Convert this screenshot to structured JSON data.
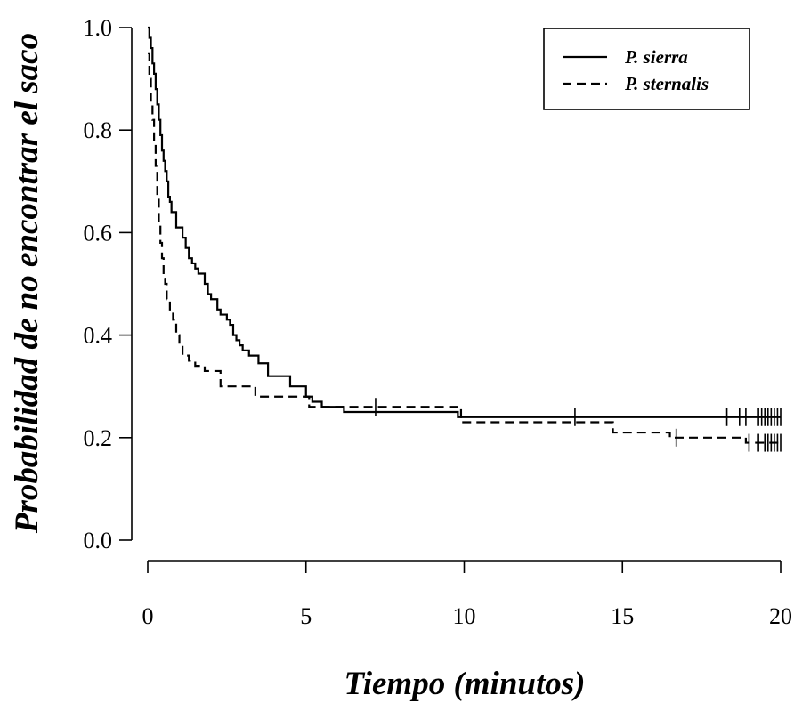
{
  "chart_data": {
    "type": "line",
    "subtype": "kaplan-meier step survival curves",
    "title": "",
    "xlabel": "Tiempo (minutos)",
    "ylabel": "Probabilidad de no encontrar el saco",
    "xlim": [
      0,
      20
    ],
    "ylim": [
      0,
      1
    ],
    "xticks": [
      "0",
      "5",
      "10",
      "15",
      "20"
    ],
    "yticks": [
      "0.0",
      "0.2",
      "0.4",
      "0.6",
      "0.8",
      "1.0"
    ],
    "grid": false,
    "legend_position": "top-right",
    "series": [
      {
        "name": "P. sierra",
        "line_style": "solid",
        "color": "#000000",
        "x": [
          0,
          0.05,
          0.1,
          0.15,
          0.2,
          0.25,
          0.3,
          0.35,
          0.4,
          0.45,
          0.5,
          0.55,
          0.6,
          0.65,
          0.7,
          0.75,
          0.8,
          0.9,
          1.1,
          1.2,
          1.3,
          1.4,
          1.5,
          1.6,
          1.8,
          1.9,
          2.0,
          2.2,
          2.3,
          2.5,
          2.6,
          2.7,
          2.8,
          2.9,
          3.0,
          3.2,
          3.5,
          3.8,
          4.5,
          5.0,
          5.2,
          5.5,
          6.2,
          9.8,
          20.0
        ],
        "y": [
          1.0,
          0.98,
          0.96,
          0.93,
          0.91,
          0.88,
          0.85,
          0.82,
          0.79,
          0.76,
          0.74,
          0.72,
          0.7,
          0.67,
          0.66,
          0.64,
          0.64,
          0.61,
          0.59,
          0.57,
          0.55,
          0.54,
          0.53,
          0.52,
          0.5,
          0.48,
          0.47,
          0.45,
          0.44,
          0.43,
          0.42,
          0.4,
          0.39,
          0.38,
          0.37,
          0.36,
          0.345,
          0.32,
          0.3,
          0.28,
          0.27,
          0.26,
          0.25,
          0.24,
          0.24
        ],
        "censor_times": [
          13.5,
          18.3,
          18.7,
          18.9,
          19.3,
          19.4,
          19.5,
          19.6,
          19.7,
          19.8,
          19.9,
          20.0
        ]
      },
      {
        "name": "P. sternalis",
        "line_style": "dashed",
        "color": "#000000",
        "x": [
          0,
          0.05,
          0.1,
          0.15,
          0.2,
          0.25,
          0.3,
          0.35,
          0.4,
          0.45,
          0.5,
          0.55,
          0.6,
          0.7,
          0.8,
          0.9,
          1.0,
          1.1,
          1.3,
          1.5,
          1.8,
          2.3,
          3.4,
          5.1,
          9.9,
          14.7,
          16.5,
          18.9,
          20.0
        ],
        "y": [
          0.95,
          0.9,
          0.85,
          0.82,
          0.78,
          0.73,
          0.67,
          0.62,
          0.58,
          0.55,
          0.51,
          0.5,
          0.47,
          0.45,
          0.43,
          0.4,
          0.38,
          0.36,
          0.35,
          0.34,
          0.33,
          0.3,
          0.28,
          0.26,
          0.23,
          0.21,
          0.2,
          0.19,
          0.19
        ],
        "censor_times": [
          7.2,
          16.7,
          19.0,
          19.3,
          19.5,
          19.6,
          19.7,
          19.8,
          19.9,
          20.0
        ]
      }
    ]
  }
}
